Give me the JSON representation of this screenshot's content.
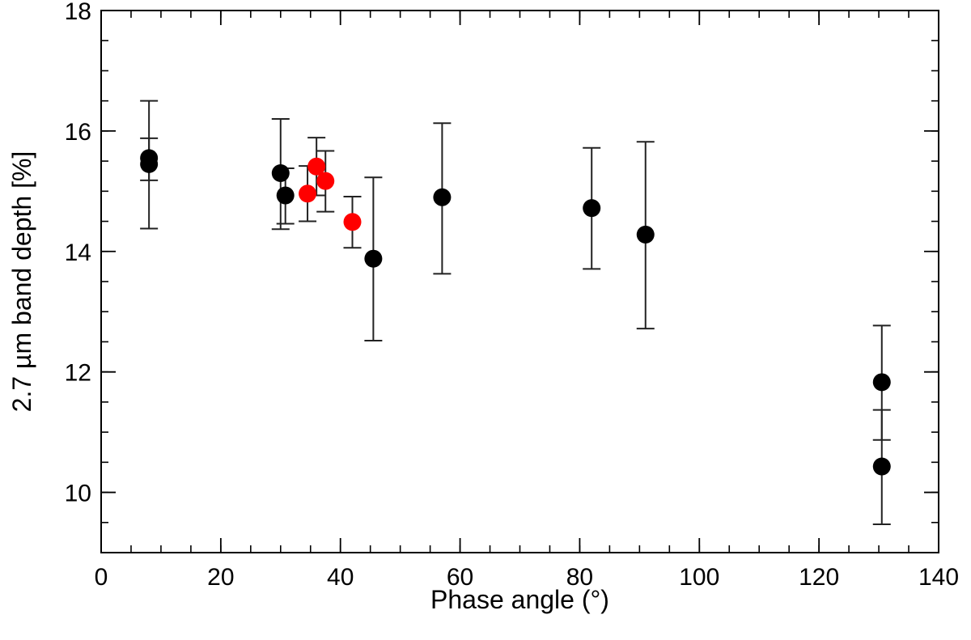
{
  "chart_data": {
    "type": "scatter",
    "title": "",
    "xlabel": "Phase angle (°)",
    "ylabel": "2.7 µm band depth [%]",
    "xlim": [
      0,
      140
    ],
    "ylim": [
      9,
      18
    ],
    "x_ticks": [
      0,
      20,
      40,
      60,
      80,
      100,
      120,
      140
    ],
    "y_ticks": [
      10,
      12,
      14,
      16,
      18
    ],
    "x_minor_step": 5,
    "y_minor_step": 0.5,
    "grid": false,
    "legend": "none",
    "series": [
      {
        "color": "#000000",
        "points": [
          {
            "x": 8.0,
            "y": 15.55,
            "err_low": 14.38,
            "err_high": 16.5
          },
          {
            "x": 8.0,
            "y": 15.45,
            "err_low": 15.18,
            "err_high": 15.88
          },
          {
            "x": 30.0,
            "y": 15.3,
            "err_low": 14.37,
            "err_high": 16.2
          },
          {
            "x": 30.8,
            "y": 14.93,
            "err_low": 14.46,
            "err_high": 15.38
          },
          {
            "x": 45.5,
            "y": 13.88,
            "err_low": 12.52,
            "err_high": 15.23
          },
          {
            "x": 57.0,
            "y": 14.9,
            "err_low": 13.63,
            "err_high": 16.13
          },
          {
            "x": 82.0,
            "y": 14.72,
            "err_low": 13.71,
            "err_high": 15.72
          },
          {
            "x": 91.0,
            "y": 14.28,
            "err_low": 12.72,
            "err_high": 15.82
          },
          {
            "x": 130.5,
            "y": 11.83,
            "err_low": 10.87,
            "err_high": 12.77
          },
          {
            "x": 130.5,
            "y": 10.43,
            "err_low": 9.47,
            "err_high": 11.37
          }
        ]
      },
      {
        "color": "#ff0000",
        "points": [
          {
            "x": 34.5,
            "y": 14.96,
            "err_low": 14.5,
            "err_high": 15.42
          },
          {
            "x": 36.0,
            "y": 15.41,
            "err_low": 14.93,
            "err_high": 15.89
          },
          {
            "x": 37.5,
            "y": 15.17,
            "err_low": 14.66,
            "err_high": 15.67
          },
          {
            "x": 42.0,
            "y": 14.49,
            "err_low": 14.06,
            "err_high": 14.91
          }
        ]
      }
    ]
  }
}
